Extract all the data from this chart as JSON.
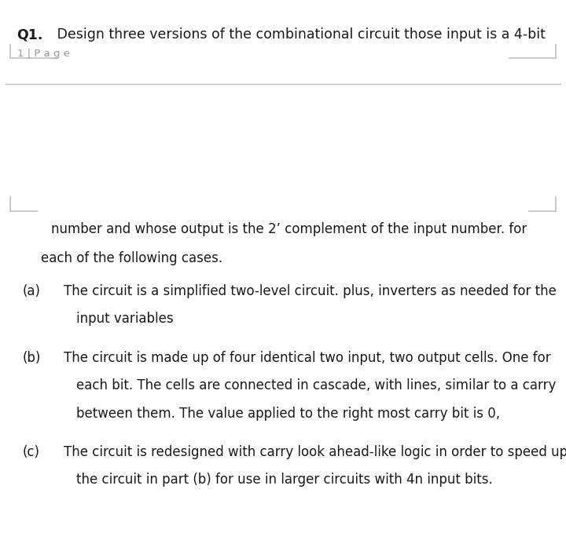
{
  "bg_color": "#f0f0f0",
  "page_bg": "#ffffff",
  "title_bold": "Q1.",
  "title_text": " Design three versions of the combinational circuit those input is a 4-bit",
  "page_label": "1 | P a g e",
  "continuation_line1": "number and whose output is the 2’ complement of the input number. for",
  "continuation_line2": "each of the following cases.",
  "items": [
    {
      "label": "(a)",
      "line1": "The circuit is a simplified two-level circuit. plus, inverters as needed for the",
      "line2": "input variables",
      "line3": null
    },
    {
      "label": "(b)",
      "line1": "The circuit is made up of four identical two input, two output cells. One for",
      "line2": "each bit. The cells are connected in cascade, with lines, similar to a carry",
      "line3": "between them. The value applied to the right most carry bit is 0,"
    },
    {
      "label": "(c)",
      "line1": "The circuit is redesigned with carry look ahead-like logic in order to speed up",
      "line2": "the circuit in part (b) for use in larger circuits with 4n input bits.",
      "line3": null
    }
  ],
  "title_fontsize": 12.5,
  "body_fontsize": 12.0,
  "page_label_fontsize": 9.5,
  "text_color": "#1a1a1a",
  "gray_color": "#999999",
  "line_color": "#c0c0c0"
}
